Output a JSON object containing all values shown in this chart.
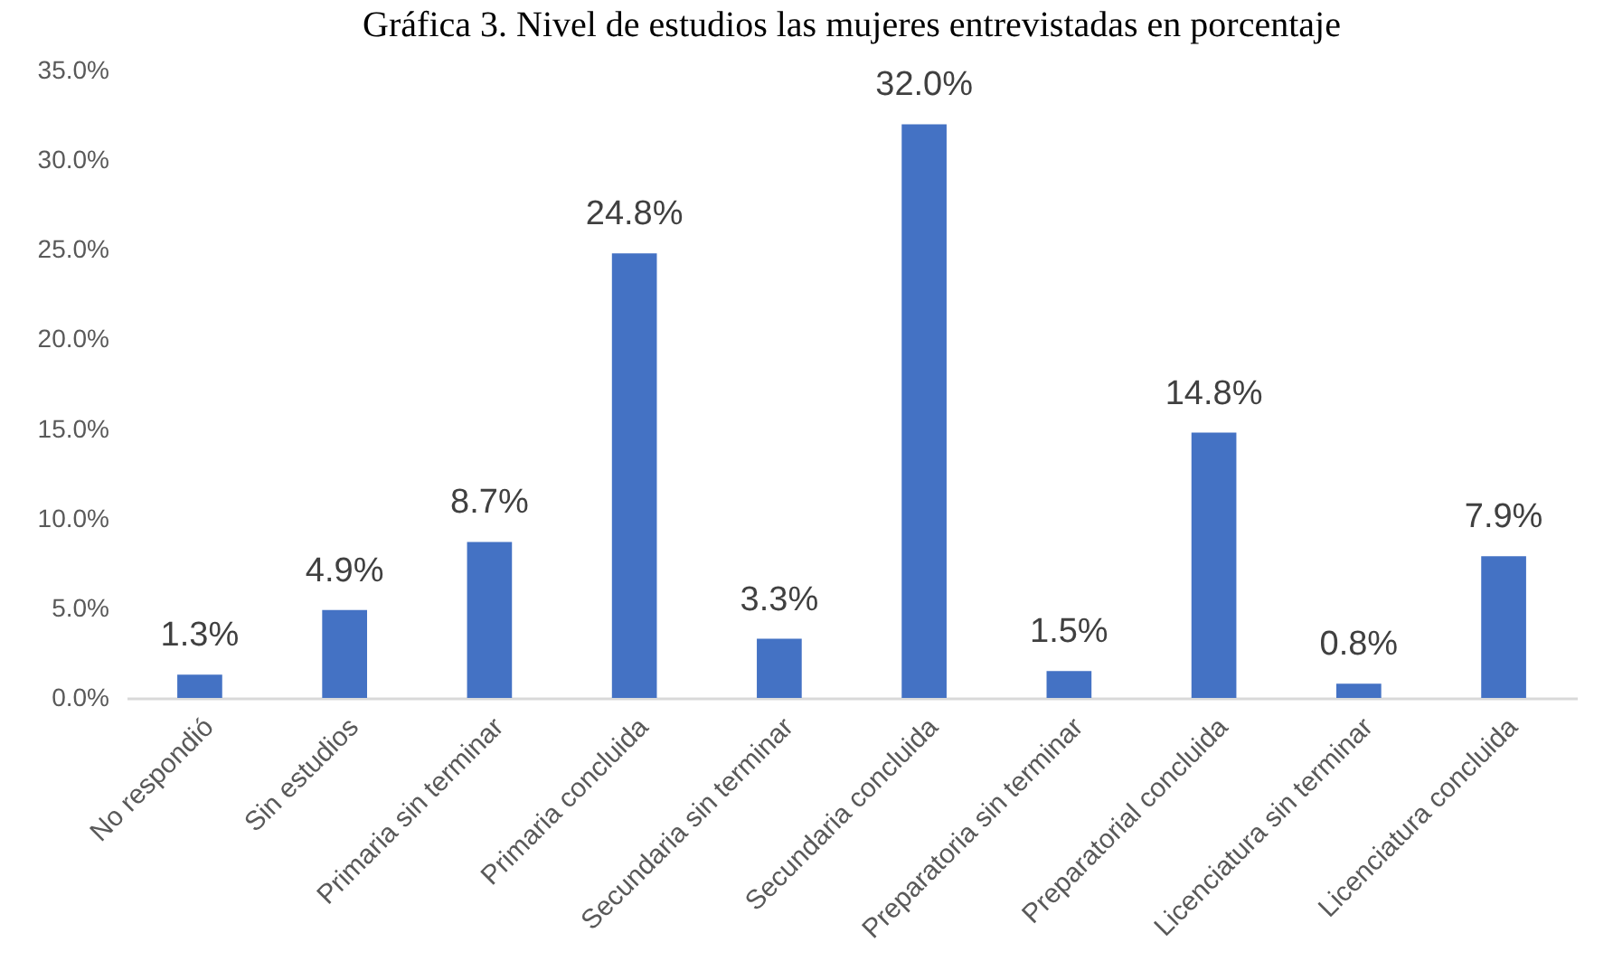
{
  "chart_data": {
    "type": "bar",
    "title": "Gráfica 3. Nivel de estudios las mujeres entrevistadas en porcentaje",
    "categories": [
      "No respondió",
      "Sin estudios",
      "Primaria sin terminar",
      "Primaria concluida",
      "Secundaria sin terminar",
      "Secundaria concluida",
      "Preparatoria sin terminar",
      "Preparatorial concluida",
      "Licenciatura sin terminar",
      "Licenciatura concluida"
    ],
    "values": [
      1.3,
      4.9,
      8.7,
      24.8,
      3.3,
      32.0,
      1.5,
      14.8,
      0.8,
      7.9
    ],
    "value_labels": [
      "1.3%",
      "4.9%",
      "8.7%",
      "24.8%",
      "3.3%",
      "32.0%",
      "1.5%",
      "14.8%",
      "0.8%",
      "7.9%"
    ],
    "color": "#4472c4",
    "ylim": [
      0,
      35
    ],
    "yticks": [
      {
        "value": 0,
        "label": "0.0%"
      },
      {
        "value": 5,
        "label": "5.0%"
      },
      {
        "value": 10,
        "label": "10.0%"
      },
      {
        "value": 15,
        "label": "15.0%"
      },
      {
        "value": 20,
        "label": "20.0%"
      },
      {
        "value": 25,
        "label": "25.0%"
      },
      {
        "value": 30,
        "label": "30.0%"
      },
      {
        "value": 35,
        "label": "35.0%"
      }
    ]
  }
}
